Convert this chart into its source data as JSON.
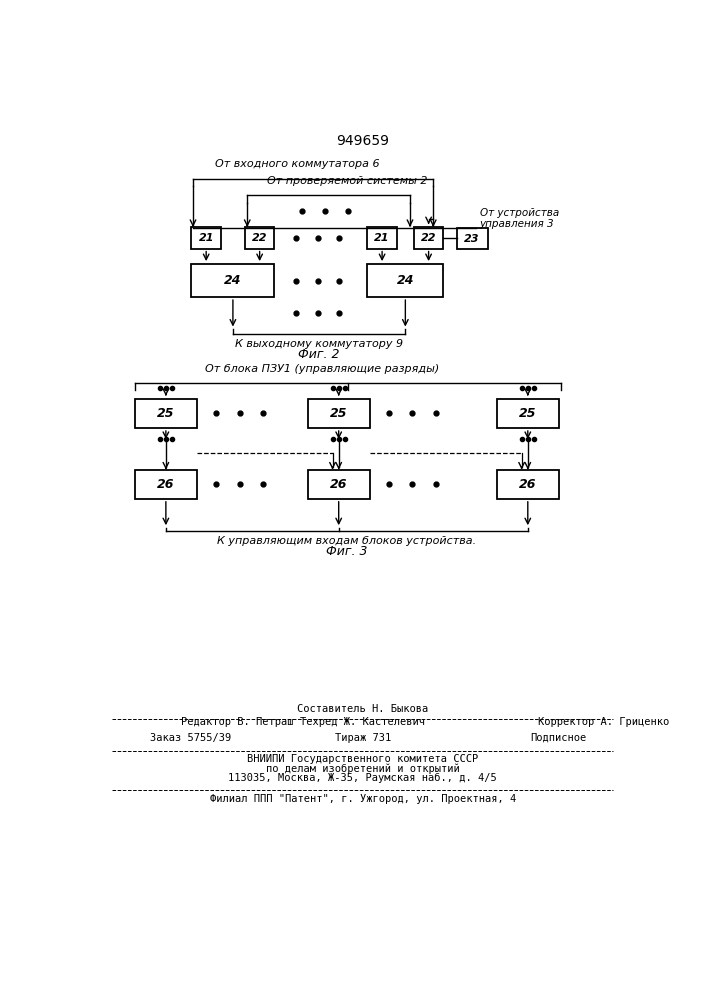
{
  "title": "949659",
  "fig2_label_top": "От входного коммутатора 6",
  "fig2_label_mid": "От проверяемой системы 2",
  "fig2_label_right": "От устройства\nуправления 3",
  "fig2_label_bot": "К выходному коммутатору 9",
  "fig2_caption": "Фиг. 2",
  "fig3_label_top": "От блока ПЗУ1 (управляющие разряды)",
  "fig3_label_bot": "К управляющим входам блоков устройства.",
  "fig3_caption": "Фиг. 3",
  "footer_editor": "Редактор В. Петраш",
  "footer_composer": "Составитель Н. Быкова",
  "footer_techred": "Техред Ж. Кастелевич",
  "footer_corrector": "Корректор А. Гриценко",
  "footer_order": "Заказ 5755/39",
  "footer_tirazh": "Тираж 731",
  "footer_podp": "Подписное",
  "footer_vniip": "ВНИИПИ Государственного комитета СССР",
  "footer_dela": "по делам изобретений и открытий",
  "footer_addr": "113035, Москва, Ж-35, Раумская наб., д. 4/5",
  "footer_filial": "Филиал ППП \"Патент\", г. Ужгород, ул. Проектная, 4",
  "bg_color": "#ffffff"
}
